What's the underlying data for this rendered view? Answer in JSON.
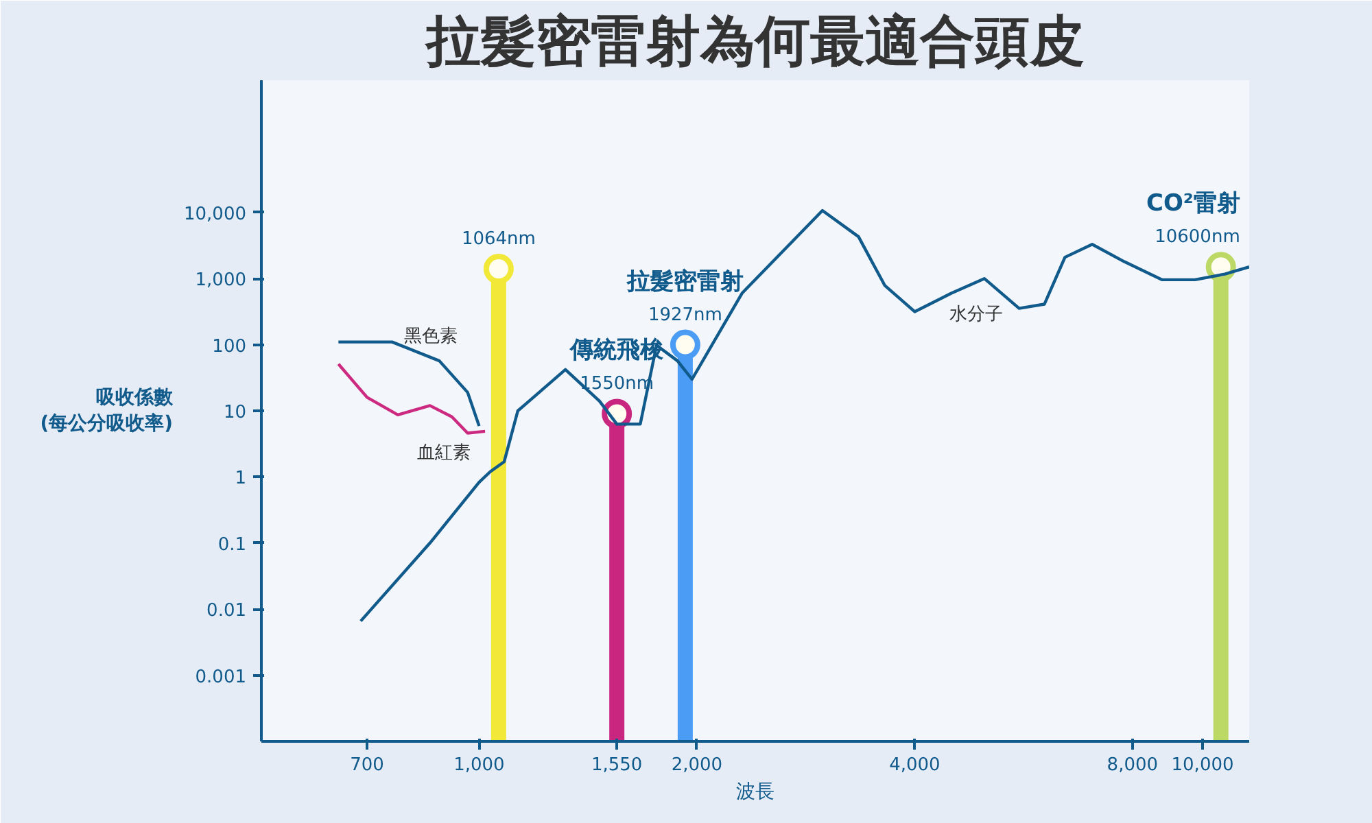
{
  "chart_data": {
    "type": "line",
    "title": "拉髮密雷射為何最適合頭皮",
    "xlabel": "波長",
    "ylabel": "吸收係數\n(每公分吸收率)",
    "log": "xy",
    "grid": false,
    "xlim": [
      500,
      11600
    ],
    "ylim": [
      0.0001,
      1000000
    ],
    "xticks": [
      {
        "value": 700,
        "label": "700"
      },
      {
        "value": 1000,
        "label": "1,000"
      },
      {
        "value": 1550,
        "label": "1,550"
      },
      {
        "value": 2000,
        "label": "2,000"
      },
      {
        "value": 4000,
        "label": "4,000"
      },
      {
        "value": 8000,
        "label": "8,000"
      },
      {
        "value": 10000,
        "label": "10,000"
      }
    ],
    "yticks": [
      0.001,
      0.01,
      0.1,
      1,
      {
        "value": 10,
        "label": "10"
      },
      {
        "value": 100,
        "label": "100"
      },
      {
        "value": 1000,
        "label": "1,000"
      },
      {
        "value": 10000,
        "label": "10,000"
      }
    ],
    "series": [
      {
        "name": "黑色素",
        "color": "#115a8c",
        "x": [
          639,
          758,
          881,
          964,
          1000
        ],
        "values": [
          110,
          110,
          57,
          19,
          5.9
        ]
      },
      {
        "name": "血紅素",
        "color": "#cc2a80",
        "x": [
          639,
          700,
          772,
          855,
          917,
          964,
          1019
        ],
        "values": [
          51,
          16,
          8.7,
          12,
          8.1,
          4.6,
          4.9
        ]
      },
      {
        "name": "水分子",
        "color": "#115a8c",
        "x": [
          686,
          855,
          1000,
          1036,
          1083,
          1131,
          1316,
          1467,
          1550,
          1670,
          1759,
          1880,
          1969,
          2309,
          2982,
          3345,
          3636,
          4000,
          4496,
          4993,
          5577,
          6044,
          6453,
          7037,
          7796,
          8794,
          9765,
          10735,
          11600
        ],
        "values": [
          0.0066,
          0.1,
          0.83,
          1.2,
          1.7,
          10,
          42,
          14,
          6.3,
          6.3,
          98,
          57,
          30,
          600,
          10700,
          4300,
          790,
          316,
          600,
          1000,
          355,
          410,
          2100,
          3300,
          1800,
          960,
          960,
          1170,
          1500
        ]
      },
      {
        "type": "lollipop",
        "x": [
          1064,
          1550,
          1927,
          10600
        ],
        "values": [
          1400,
          9,
          100,
          1500
        ],
        "colors": [
          "#f2e838",
          "#c8267f",
          "#4a9cf5",
          "#bcd966"
        ]
      }
    ],
    "annotations": [
      {
        "text": "1064nm",
        "x": 1064,
        "y": 1400
      },
      {
        "text": "傳統飛梭",
        "x": 1550,
        "y": 9
      },
      {
        "text": "1550nm",
        "x": 1550,
        "y": 9
      },
      {
        "text": "拉髮密雷射",
        "x": 1927,
        "y": 100
      },
      {
        "text": "1927nm",
        "x": 1927,
        "y": 100
      },
      {
        "text": "CO²雷射",
        "x": 10600,
        "y": 1500
      },
      {
        "text": "10600nm",
        "x": 10600,
        "y": 1500
      }
    ]
  }
}
